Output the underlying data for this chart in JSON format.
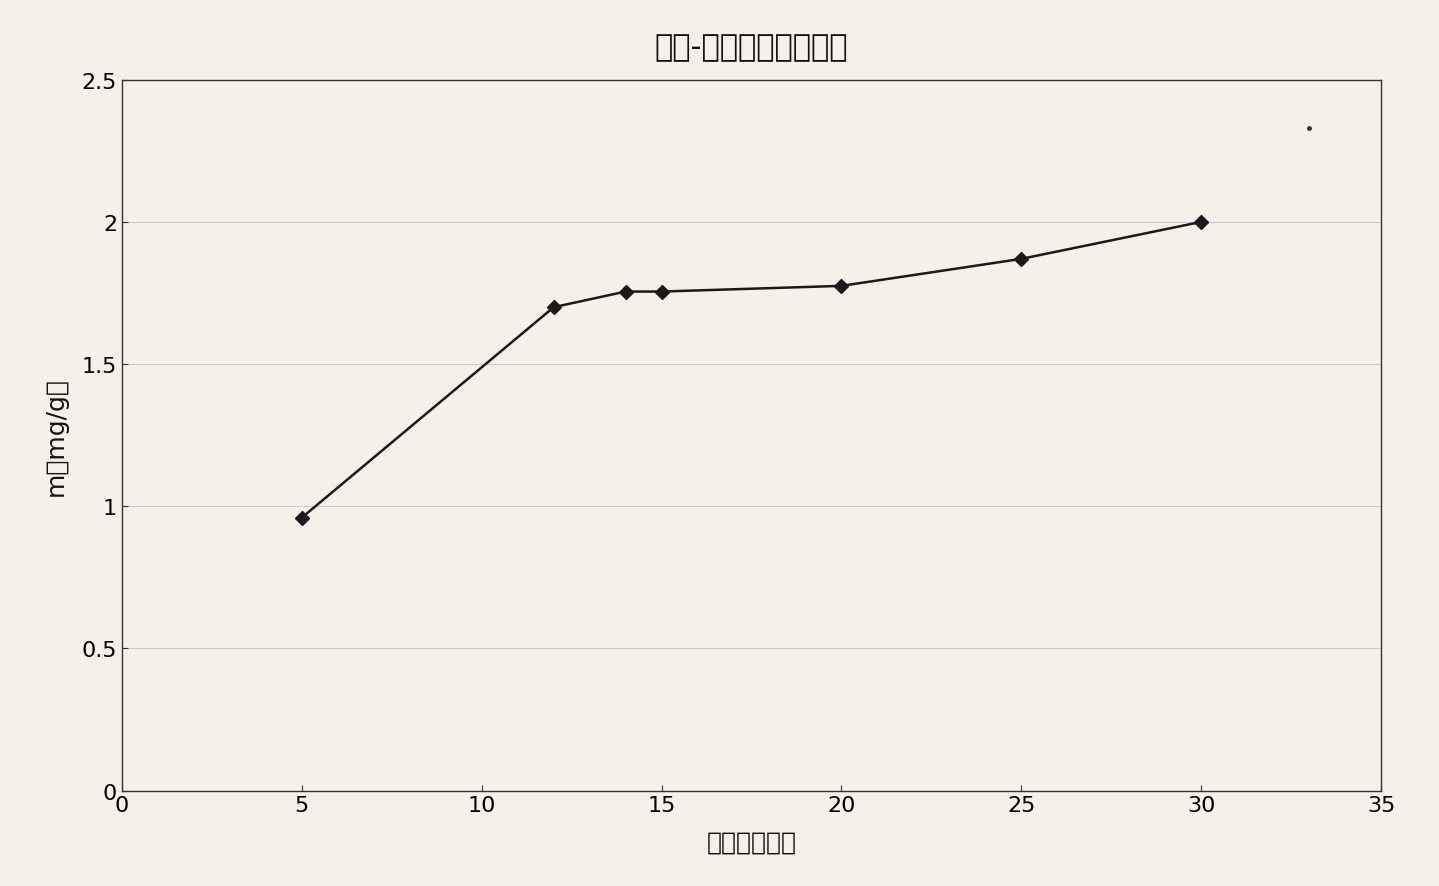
{
  "title": "时间-含量曲线（液相）",
  "xlabel": "时间（分钟）",
  "ylabel": "m（mg/g）",
  "x_data": [
    5,
    12,
    14,
    15,
    20,
    25,
    30
  ],
  "y_data": [
    0.96,
    1.7,
    1.755,
    1.755,
    1.775,
    1.87,
    2.0
  ],
  "xlim": [
    0,
    35
  ],
  "ylim": [
    0,
    2.5
  ],
  "xticks": [
    0,
    5,
    10,
    15,
    20,
    25,
    30,
    35
  ],
  "yticks": [
    0,
    0.5,
    1.0,
    1.5,
    2.0,
    2.5
  ],
  "ytick_labels": [
    "0",
    "0.5",
    "1",
    "1.5",
    "2",
    "2.5"
  ],
  "line_color": "#1a1a1a",
  "marker_style": "D",
  "marker_size": 7,
  "marker_color": "#1a1a1a",
  "background_color": "#f5f0e8",
  "grid_color": "#cccccc",
  "stray_dot_x": 33,
  "stray_dot_y": 2.33,
  "title_fontsize": 22,
  "axis_label_fontsize": 18,
  "tick_fontsize": 16
}
